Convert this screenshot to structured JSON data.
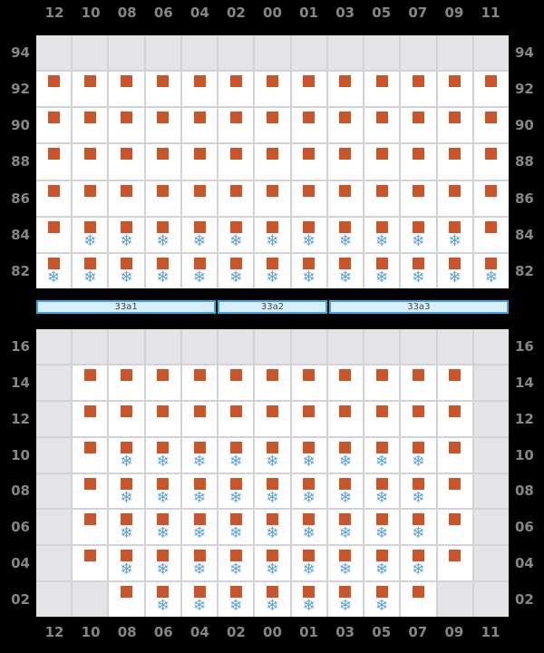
{
  "columns": [
    "12",
    "10",
    "08",
    "06",
    "04",
    "02",
    "00",
    "01",
    "03",
    "05",
    "07",
    "09",
    "11"
  ],
  "deck": {
    "tiers": [
      {
        "tier": "94",
        "cells": [
          "E",
          "E",
          "E",
          "E",
          "E",
          "E",
          "E",
          "E",
          "E",
          "E",
          "E",
          "E",
          "E"
        ]
      },
      {
        "tier": "92",
        "cells": [
          "C",
          "C",
          "C",
          "C",
          "C",
          "C",
          "C",
          "C",
          "C",
          "C",
          "C",
          "C",
          "C"
        ]
      },
      {
        "tier": "90",
        "cells": [
          "C",
          "C",
          "C",
          "C",
          "C",
          "C",
          "C",
          "C",
          "C",
          "C",
          "C",
          "C",
          "C"
        ]
      },
      {
        "tier": "88",
        "cells": [
          "C",
          "C",
          "C",
          "C",
          "C",
          "C",
          "C",
          "C",
          "C",
          "C",
          "C",
          "C",
          "C"
        ]
      },
      {
        "tier": "86",
        "cells": [
          "C",
          "C",
          "C",
          "C",
          "C",
          "C",
          "C",
          "C",
          "C",
          "C",
          "C",
          "C",
          "C"
        ]
      },
      {
        "tier": "84",
        "cells": [
          "C",
          "R",
          "R",
          "R",
          "R",
          "R",
          "R",
          "R",
          "R",
          "R",
          "R",
          "R",
          "C"
        ]
      },
      {
        "tier": "82",
        "cells": [
          "R",
          "R",
          "R",
          "R",
          "R",
          "R",
          "R",
          "R",
          "R",
          "R",
          "R",
          "R",
          "R"
        ]
      }
    ]
  },
  "hatches": [
    {
      "label": "33a1",
      "span": 5
    },
    {
      "label": "33a2",
      "span": 3
    },
    {
      "label": "33a3",
      "span": 5
    }
  ],
  "hold": {
    "tiers": [
      {
        "tier": "16",
        "cells": [
          "E",
          "E",
          "E",
          "E",
          "E",
          "E",
          "E",
          "E",
          "E",
          "E",
          "E",
          "E",
          "E"
        ]
      },
      {
        "tier": "14",
        "cells": [
          "E",
          "C",
          "C",
          "C",
          "C",
          "C",
          "C",
          "C",
          "C",
          "C",
          "C",
          "C",
          "E"
        ]
      },
      {
        "tier": "12",
        "cells": [
          "E",
          "C",
          "C",
          "C",
          "C",
          "C",
          "C",
          "C",
          "C",
          "C",
          "C",
          "C",
          "E"
        ]
      },
      {
        "tier": "10",
        "cells": [
          "E",
          "C",
          "R",
          "R",
          "R",
          "R",
          "R",
          "R",
          "R",
          "R",
          "R",
          "C",
          "E"
        ]
      },
      {
        "tier": "08",
        "cells": [
          "E",
          "C",
          "R",
          "R",
          "R",
          "R",
          "R",
          "R",
          "R",
          "R",
          "R",
          "C",
          "E"
        ]
      },
      {
        "tier": "06",
        "cells": [
          "E",
          "C",
          "R",
          "R",
          "R",
          "R",
          "R",
          "R",
          "R",
          "R",
          "R",
          "C",
          "E"
        ]
      },
      {
        "tier": "04",
        "cells": [
          "E",
          "C",
          "R",
          "R",
          "R",
          "R",
          "R",
          "R",
          "R",
          "R",
          "R",
          "C",
          "E"
        ]
      },
      {
        "tier": "02",
        "cells": [
          "E",
          "E",
          "C",
          "R",
          "R",
          "R",
          "R",
          "R",
          "R",
          "R",
          "C",
          "E",
          "E"
        ]
      }
    ]
  },
  "cell_codes": {
    "E": "empty-slot",
    "C": "container",
    "R": "container-with-reefer"
  },
  "icons": {
    "reefer_glyph": "❄"
  },
  "colors": {
    "background": "#000000",
    "container_square": "#cb5429",
    "reefer_snowflake": "#5ca0d6",
    "empty_cell": "#e4e4e6",
    "grid_line": "#d3d3d7",
    "label_text": "#85868a",
    "hatch_fill": "#d9eefa",
    "hatch_border": "#36abe0",
    "hatch_text": "#454545"
  }
}
